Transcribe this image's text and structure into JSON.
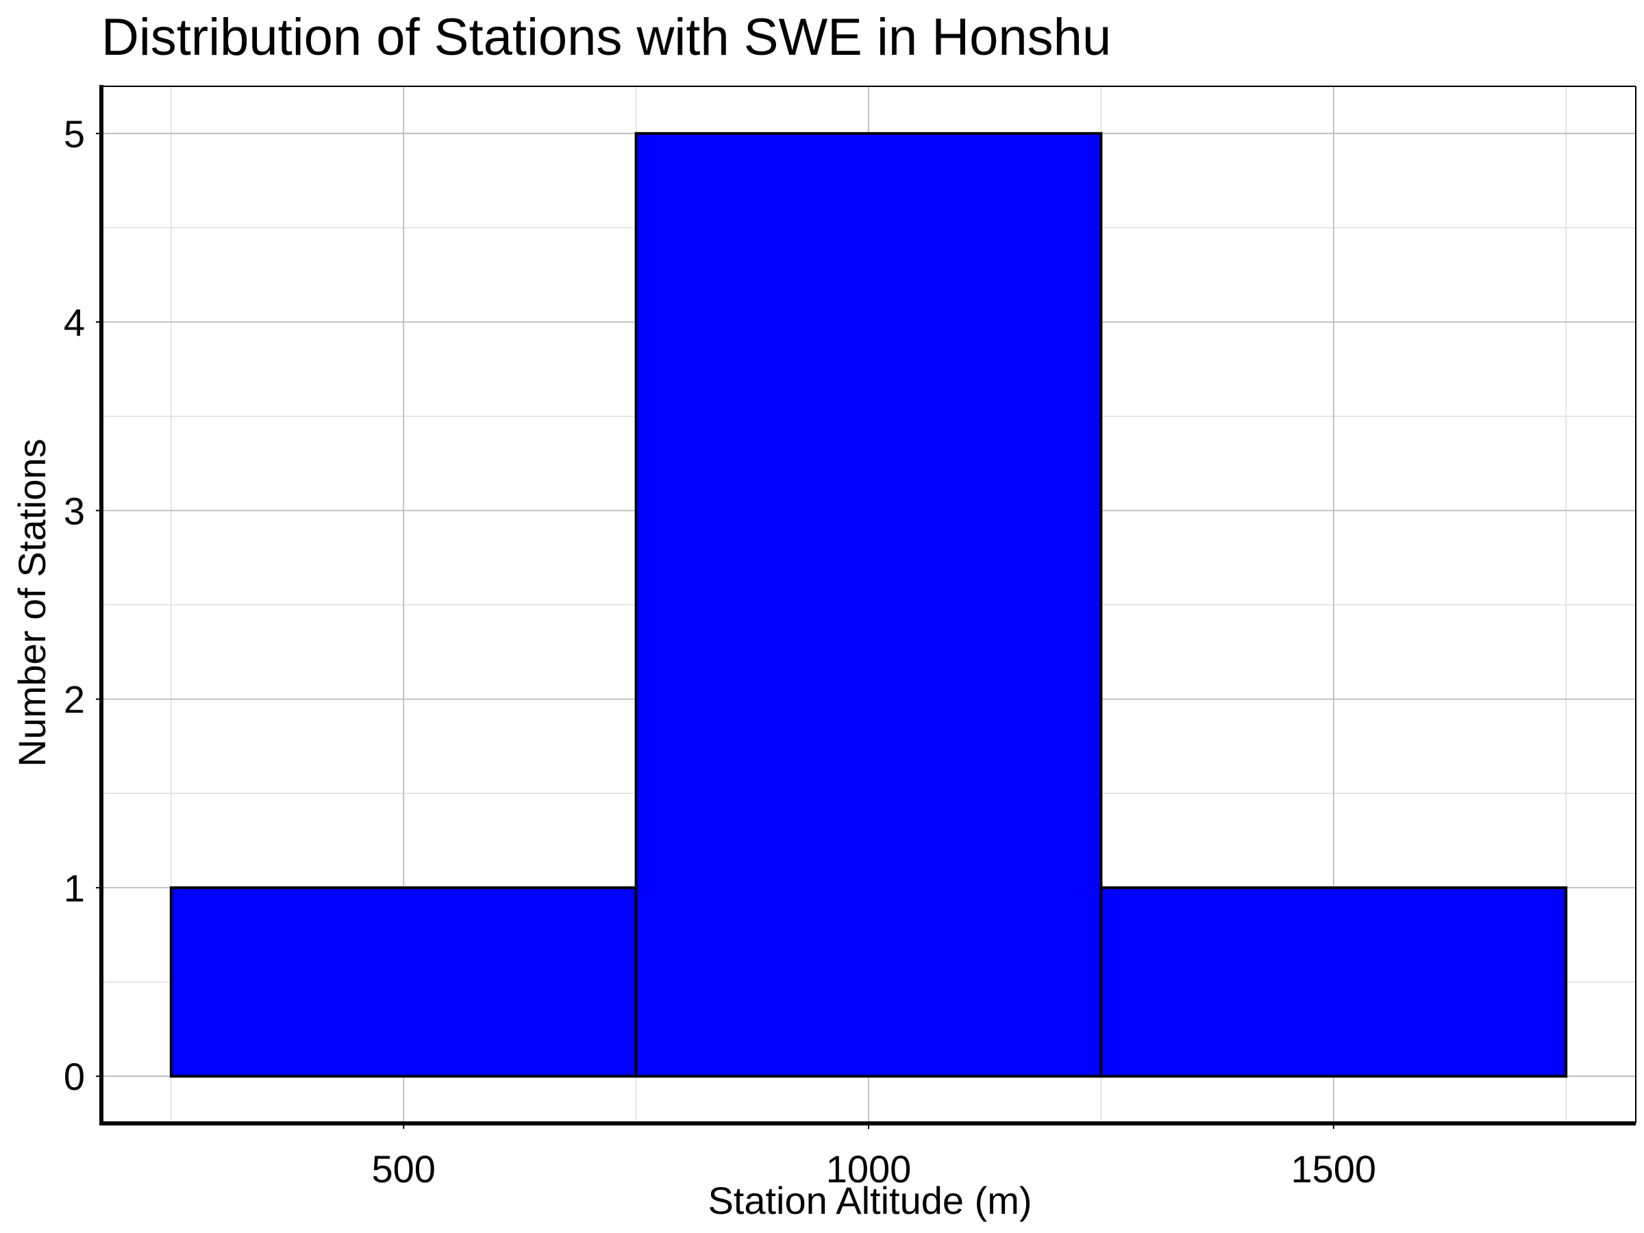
{
  "chart_data": {
    "type": "bar",
    "subtype": "histogram",
    "title": "Distribution of Stations with SWE in Honshu",
    "xlabel": "Station Altitude (m)",
    "ylabel": "Number of Stations",
    "bins": [
      {
        "x0": 250,
        "x1": 750,
        "count": 1
      },
      {
        "x0": 750,
        "x1": 1250,
        "count": 5
      },
      {
        "x0": 1250,
        "x1": 1750,
        "count": 1
      }
    ],
    "xlim": [
      175,
      1825
    ],
    "ylim": [
      -0.25,
      5.25
    ],
    "xticks": [
      500,
      1000,
      1500
    ],
    "yticks": [
      0,
      1,
      2,
      3,
      4,
      5
    ],
    "x_minor_ticks": [
      250,
      750,
      1250,
      1750
    ],
    "y_minor_ticks": [
      0.5,
      1.5,
      2.5,
      3.5,
      4.5
    ],
    "grid": true,
    "colors": {
      "bar_fill": "#0000ff",
      "bar_edge": "#000000",
      "grid_major": "#bbbbbb",
      "grid_minor": "#dddddd",
      "axis": "#000000"
    }
  }
}
